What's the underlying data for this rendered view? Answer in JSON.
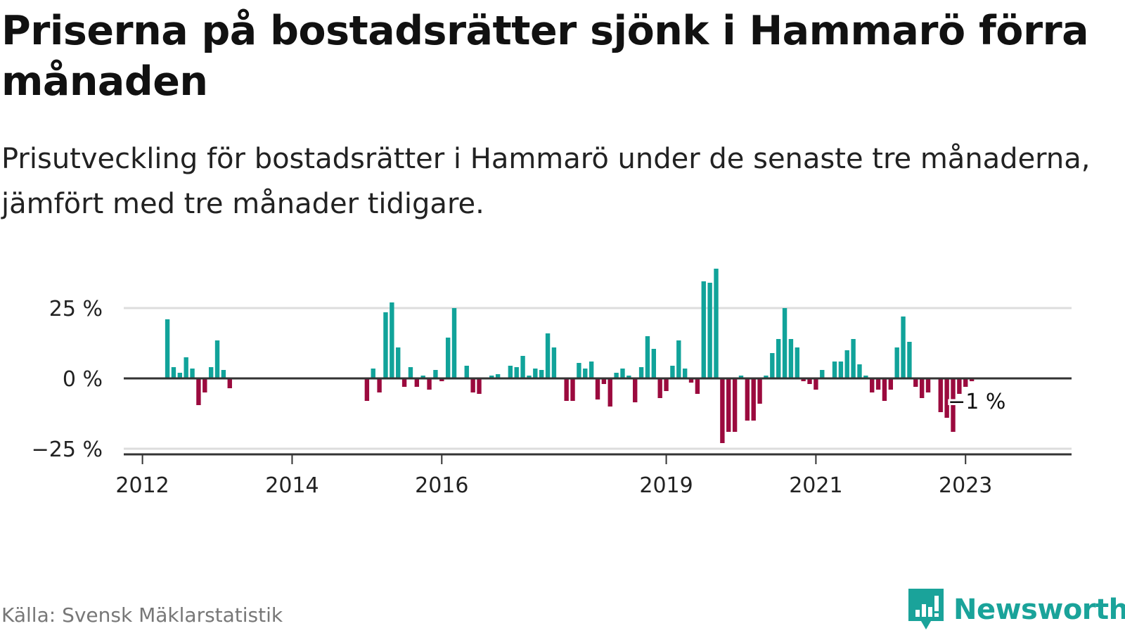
{
  "title": "Priserna på bostadsrätter sjönk i Hammarö förra månaden",
  "subtitle": "Prisutveckling för bostadsrätter i Hammarö under de senaste tre månaderna, jämfört med tre månader tidigare.",
  "source": "Källa: Svensk Mäklarstatistik",
  "brand": {
    "name": "Newsworthy",
    "icon": "newsworthy-chart-logo-icon",
    "color": "#1aa39a"
  },
  "colors": {
    "positive": "#11a39a",
    "negative": "#9b0a3e",
    "axis": "#333333",
    "grid": "#dddddd"
  },
  "chart_data": {
    "type": "bar",
    "title": "",
    "xlabel": "",
    "ylabel": "",
    "ylim": [
      -25,
      40
    ],
    "grid": true,
    "legend": "none",
    "y_ticks": [
      {
        "value": 25,
        "label": "25 %"
      },
      {
        "value": 0,
        "label": "0 %"
      },
      {
        "value": -25,
        "label": "−25 %"
      }
    ],
    "x_ticks": [
      {
        "value": "2012-01",
        "label": "2012"
      },
      {
        "value": "2014-01",
        "label": "2014"
      },
      {
        "value": "2016-01",
        "label": "2016"
      },
      {
        "value": "2019-01",
        "label": "2019"
      },
      {
        "value": "2021-01",
        "label": "2021"
      },
      {
        "value": "2023-01",
        "label": "2023"
      }
    ],
    "x_range": [
      "2011-10",
      "2024-06"
    ],
    "annotation": {
      "x": "2023-02",
      "value": -1,
      "label": "−1 %"
    },
    "series": [
      {
        "start": "2012-05",
        "values": [
          21,
          4,
          2,
          7.5,
          3.5,
          -9.5,
          -5,
          4,
          13.5,
          3,
          -3.5
        ]
      },
      {
        "start": "2015-01",
        "values": [
          -8,
          3.5,
          -5,
          23.5,
          27,
          11,
          -3,
          4,
          -3,
          1,
          -4,
          3,
          -1,
          14.5,
          25,
          null,
          4.5,
          -5,
          -5.5,
          null,
          1,
          1.5,
          null,
          4.5,
          4,
          8,
          1,
          3.5,
          3,
          16,
          11,
          null,
          -8,
          -8,
          5.5,
          3.5,
          6,
          -7.5,
          -2,
          -10,
          2,
          3.5,
          1,
          -8.5,
          4,
          15,
          10.5,
          -7,
          -4.5,
          4.5,
          13.5,
          3.5,
          -1.5,
          -5.5,
          34.5,
          34,
          39,
          -23,
          -19,
          -19,
          1,
          -15,
          -15,
          -9,
          1,
          9,
          14,
          25,
          14,
          11,
          -1,
          -2,
          -4,
          3,
          null,
          6,
          6,
          10,
          14,
          5,
          1,
          -5,
          -4,
          -8,
          -4,
          11,
          22,
          13,
          -3,
          -7,
          -5,
          null,
          -12,
          -14,
          -19,
          -5.5,
          -3,
          -1
        ]
      }
    ]
  }
}
